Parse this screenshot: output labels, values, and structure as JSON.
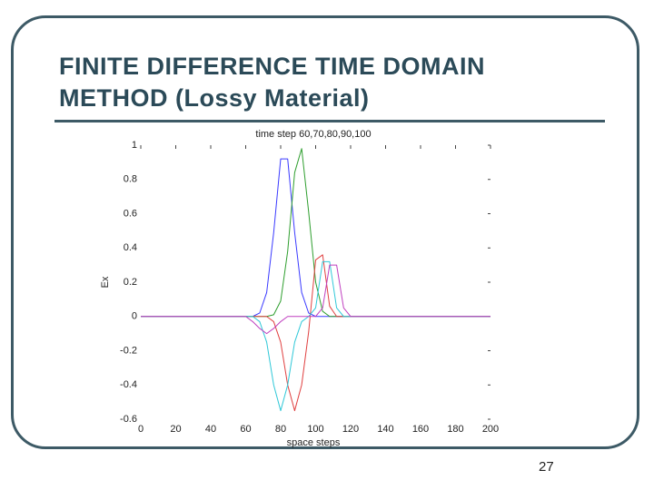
{
  "slide": {
    "title": [
      "FINITE DIFFERENCE TIME DOMAIN",
      "METHOD (Lossy Material)"
    ],
    "page_number": "27"
  },
  "chart_data": {
    "type": "line",
    "title": "time step 60,70,80,90,100",
    "x_label": "space steps",
    "y_label": "Ex",
    "x": [
      0,
      60,
      64,
      68,
      72,
      76,
      80,
      84,
      88,
      92,
      96,
      100,
      104,
      108,
      112,
      116,
      120,
      200
    ],
    "series": [
      {
        "name": "60",
        "color": "#3a3aff",
        "values": [
          0,
          0,
          0,
          0.02,
          0.14,
          0.49,
          0.92,
          0.92,
          0.49,
          0.14,
          0.02,
          0,
          0,
          0,
          0,
          0,
          0,
          0
        ]
      },
      {
        "name": "70",
        "color": "#2e9e2e",
        "values": [
          0,
          0,
          0,
          0,
          0,
          0.01,
          0.09,
          0.38,
          0.84,
          0.98,
          0.61,
          0.2,
          0.03,
          0,
          0,
          0,
          0,
          0
        ]
      },
      {
        "name": "80",
        "color": "#e04040",
        "values": [
          0,
          0,
          0,
          0,
          0,
          -0.03,
          -0.15,
          -0.4,
          -0.55,
          -0.4,
          -0.09,
          0.33,
          0.36,
          0.06,
          0,
          0,
          0,
          0
        ]
      },
      {
        "name": "90",
        "color": "#30c8d8",
        "values": [
          0,
          0,
          0,
          -0.03,
          -0.15,
          -0.4,
          -0.55,
          -0.4,
          -0.15,
          -0.03,
          0,
          0.05,
          0.32,
          0.32,
          0.05,
          0,
          0,
          0
        ]
      },
      {
        "name": "100",
        "color": "#c040c0",
        "values": [
          0,
          0,
          -0.03,
          -0.07,
          -0.1,
          -0.07,
          -0.03,
          0,
          0,
          0,
          0,
          0,
          0.05,
          0.3,
          0.3,
          0.05,
          0,
          0
        ]
      }
    ],
    "xlim": [
      0,
      200
    ],
    "xticks": [
      0,
      20,
      40,
      60,
      80,
      100,
      120,
      140,
      160,
      180,
      200
    ],
    "ylim": [
      -0.6,
      1
    ],
    "yticks": [
      -0.6,
      -0.4,
      -0.2,
      0,
      0.2,
      0.4,
      0.6,
      0.8,
      1
    ]
  }
}
